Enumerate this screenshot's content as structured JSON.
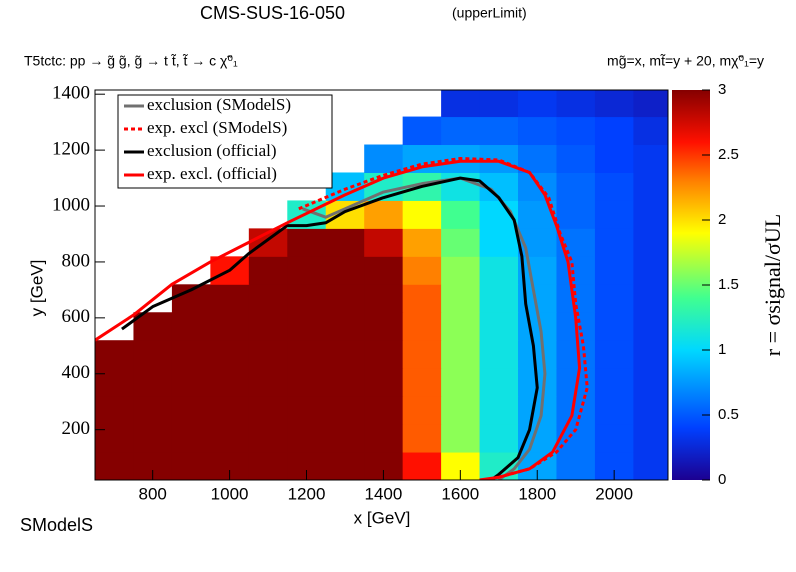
{
  "chart_data": {
    "type": "heatmap",
    "title": "CMS-SUS-16-050",
    "subtitle": "(upperLimit)",
    "process": "T5tctc: pp → g̃ g̃, g̃ → t t̃, t̃ → c χ̃⁰₁",
    "masses": "mg̃=x, mt̃=y + 20, mχ̃⁰₁=y",
    "x_label": "x [GeV]",
    "y_label": "y [GeV]",
    "z_label": "r = σsignal/σUL",
    "logo": "SModelS",
    "xlim": [
      650,
      2140
    ],
    "ylim": [
      20,
      1415
    ],
    "zlim": [
      0,
      3
    ],
    "xticks": [
      800,
      1000,
      1200,
      1400,
      1600,
      1800,
      2000
    ],
    "yticks": [
      200,
      400,
      600,
      800,
      1000,
      1200,
      1400
    ],
    "zticks": [
      0,
      0.5,
      1,
      1.5,
      2,
      2.5,
      3
    ],
    "colorscale": [
      [
        0,
        "#1c0090"
      ],
      [
        0.4,
        "#0040ff"
      ],
      [
        1.0,
        "#00d8ff"
      ],
      [
        1.4,
        "#40ff90"
      ],
      [
        1.9,
        "#ffff00"
      ],
      [
        2.3,
        "#ff8000"
      ],
      [
        2.6,
        "#ff1000"
      ],
      [
        3,
        "#850000"
      ]
    ],
    "xbins": [
      650,
      750,
      850,
      950,
      1050,
      1150,
      1250,
      1350,
      1450,
      1550,
      1650,
      1750,
      1850,
      1950,
      2050,
      2150
    ],
    "ybins": [
      20,
      120,
      220,
      320,
      420,
      520,
      620,
      720,
      820,
      920,
      1020,
      1120,
      1220,
      1320,
      1420
    ],
    "z": [
      [
        3,
        3,
        3,
        3,
        3,
        3,
        3,
        3,
        2.6,
        1.9,
        1.2,
        0.8,
        0.6,
        0.45,
        0.35
      ],
      [
        3,
        3,
        3,
        3,
        3,
        3,
        3,
        3,
        2.4,
        1.6,
        1.1,
        0.8,
        0.6,
        0.45,
        0.35
      ],
      [
        3,
        3,
        3,
        3,
        3,
        3,
        3,
        3,
        2.4,
        1.6,
        1.1,
        0.8,
        0.6,
        0.45,
        0.35
      ],
      [
        3,
        3,
        3,
        3,
        3,
        3,
        3,
        3,
        2.4,
        1.6,
        1.1,
        0.8,
        0.6,
        0.45,
        0.35
      ],
      [
        3,
        3,
        3,
        3,
        3,
        3,
        3,
        3,
        2.4,
        1.6,
        1.1,
        0.8,
        0.6,
        0.45,
        0.35
      ],
      [
        null,
        3,
        3,
        3,
        3,
        3,
        3,
        3,
        2.4,
        1.6,
        1.1,
        0.8,
        0.6,
        0.45,
        0.35
      ],
      [
        null,
        null,
        3,
        3,
        3,
        3,
        3,
        3,
        2.4,
        1.6,
        1.1,
        0.8,
        0.6,
        0.45,
        0.35
      ],
      [
        null,
        null,
        null,
        2.6,
        3,
        3,
        3,
        3,
        2.3,
        1.6,
        1.1,
        0.8,
        0.6,
        0.45,
        0.35
      ],
      [
        null,
        null,
        null,
        null,
        2.8,
        3,
        3,
        2.8,
        2.2,
        1.5,
        1.0,
        0.75,
        0.6,
        0.45,
        0.35
      ],
      [
        null,
        null,
        null,
        null,
        null,
        1.2,
        2.0,
        2.2,
        1.9,
        1.4,
        1.0,
        0.75,
        0.55,
        0.45,
        0.35
      ],
      [
        null,
        null,
        null,
        null,
        null,
        null,
        0.9,
        1.2,
        1.3,
        1.1,
        0.9,
        0.7,
        0.55,
        0.45,
        0.35
      ],
      [
        null,
        null,
        null,
        null,
        null,
        null,
        null,
        0.7,
        0.8,
        0.8,
        0.75,
        0.6,
        0.5,
        0.4,
        0.35
      ],
      [
        null,
        null,
        null,
        null,
        null,
        null,
        null,
        null,
        0.5,
        0.55,
        0.55,
        0.5,
        0.45,
        0.4,
        0.3
      ],
      [
        null,
        null,
        null,
        null,
        null,
        null,
        null,
        null,
        null,
        0.3,
        0.3,
        0.35,
        0.3,
        0.25,
        0.2
      ]
    ],
    "series": [
      {
        "name": "exclusion (SModelS)",
        "color": "#707070",
        "dash": false,
        "x": [
          1190,
          1250,
          1300,
          1400,
          1500,
          1600,
          1680,
          1730,
          1770,
          1790,
          1810,
          1820,
          1810,
          1780,
          1740,
          1700
        ],
        "y": [
          990,
          960,
          990,
          1050,
          1080,
          1100,
          1060,
          980,
          850,
          700,
          550,
          400,
          250,
          130,
          60,
          20
        ]
      },
      {
        "name": "exp. excl (SModelS)",
        "color": "#ff0000",
        "dash": true,
        "x": [
          1180,
          1300,
          1400,
          1500,
          1600,
          1700,
          1780,
          1830,
          1860,
          1890,
          1900,
          1920,
          1930,
          1900,
          1850,
          1780,
          1700
        ],
        "y": [
          990,
          1060,
          1110,
          1150,
          1170,
          1165,
          1120,
          1030,
          900,
          800,
          650,
          500,
          350,
          200,
          120,
          60,
          30
        ]
      },
      {
        "name": "exclusion (official)",
        "color": "#000000",
        "dash": false,
        "x": [
          720,
          800,
          900,
          1000,
          1050,
          1150,
          1200,
          1250,
          1300,
          1400,
          1500,
          1600,
          1650,
          1700,
          1740,
          1760,
          1770,
          1790,
          1800,
          1780,
          1750,
          1700,
          1680
        ],
        "y": [
          560,
          640,
          700,
          770,
          830,
          930,
          930,
          940,
          980,
          1030,
          1070,
          1100,
          1090,
          1030,
          950,
          820,
          650,
          500,
          350,
          200,
          100,
          40,
          20
        ]
      },
      {
        "name": "exp. excl. (official)",
        "color": "#ff0000",
        "dash": false,
        "x": [
          650,
          750,
          850,
          950,
          1050,
          1150,
          1300,
          1400,
          1500,
          1600,
          1700,
          1780,
          1820,
          1850,
          1880,
          1900,
          1910,
          1890,
          1840,
          1780,
          1700,
          1650
        ],
        "y": [
          520,
          610,
          720,
          800,
          870,
          940,
          1040,
          1100,
          1140,
          1160,
          1160,
          1120,
          1040,
          930,
          800,
          600,
          420,
          250,
          120,
          60,
          30,
          20
        ]
      }
    ]
  }
}
